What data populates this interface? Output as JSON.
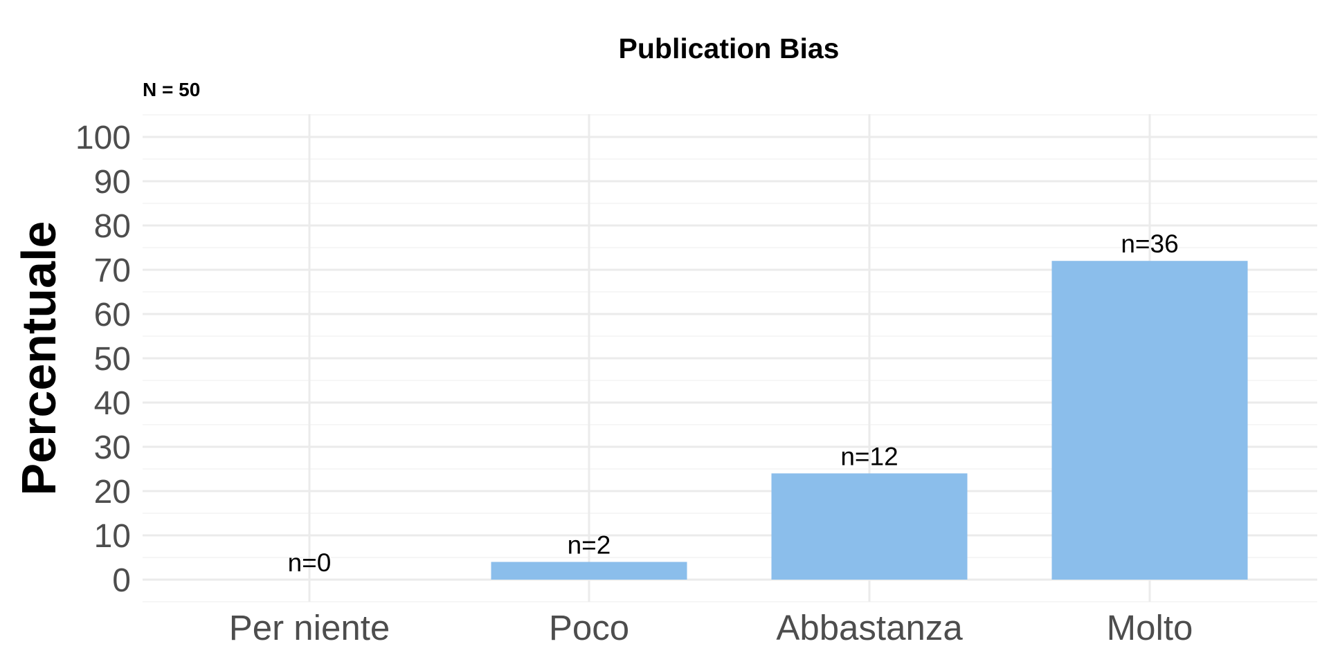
{
  "chart_data": {
    "type": "bar",
    "title": "Publication Bias",
    "subtitle": "N = 50",
    "xlabel": "",
    "ylabel": "Percentuale",
    "categories": [
      "Per niente",
      "Poco",
      "Abbastanza",
      "Molto"
    ],
    "values": [
      0,
      4,
      24,
      72
    ],
    "data_labels": [
      "n=0",
      "n=2",
      "n=12",
      "n=36"
    ],
    "ylim": [
      0,
      100
    ],
    "yticks": [
      "0",
      "10",
      "20",
      "30",
      "40",
      "50",
      "60",
      "70",
      "80",
      "90",
      "100"
    ],
    "grid": true,
    "legend": "none",
    "colors": {
      "bar": "#8bbeeb",
      "grid_major": "#ebebeb",
      "grid_minor": "#f4f4f4",
      "tick_text": "#4d4d4d",
      "background": "#ffffff"
    }
  }
}
